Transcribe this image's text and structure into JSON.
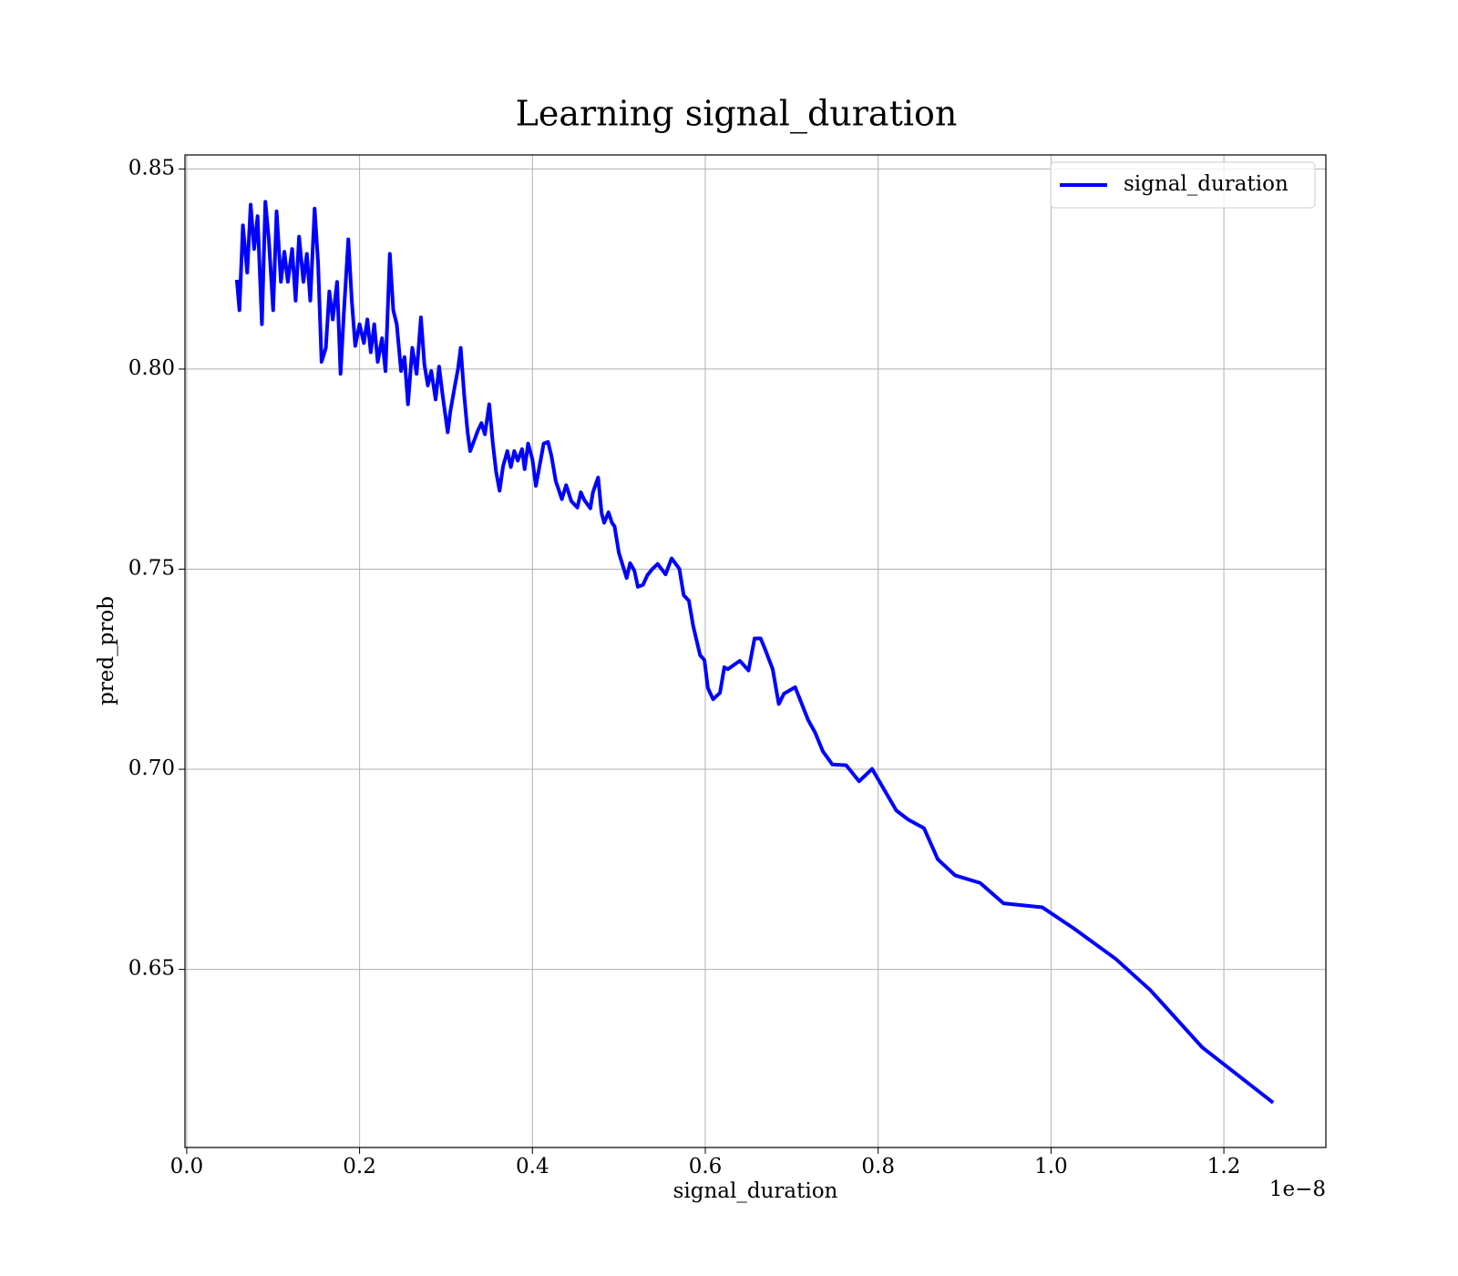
{
  "chart_data": {
    "type": "line",
    "title": "Learning signal_duration",
    "xlabel": "signal_duration",
    "ylabel": "pred_prob",
    "x_offset_label": "1e−8",
    "xlim": [
      -0.002,
      1.318
    ],
    "ylim": [
      0.6055,
      0.8535
    ],
    "xticks": [
      {
        "value": 0,
        "label": "0.0"
      },
      0.2,
      0.4,
      0.6,
      0.8,
      {
        "value": 1,
        "label": "1.0"
      },
      1.2
    ],
    "yticks": [
      {
        "value": 0.65,
        "label": "0.65"
      },
      {
        "value": 0.7,
        "label": "0.70"
      },
      {
        "value": 0.75,
        "label": "0.75"
      },
      {
        "value": 0.8,
        "label": "0.80"
      },
      {
        "value": 0.85,
        "label": "0.85"
      }
    ],
    "grid": true,
    "legend": "upper right",
    "x": [
      0.058,
      0.061,
      0.065,
      0.07,
      0.074,
      0.078,
      0.082,
      0.087,
      0.091,
      0.095,
      0.1,
      0.104,
      0.109,
      0.113,
      0.117,
      0.122,
      0.126,
      0.13,
      0.135,
      0.139,
      0.143,
      0.148,
      0.152,
      0.156,
      0.161,
      0.165,
      0.169,
      0.174,
      0.178,
      0.182,
      0.187,
      0.191,
      0.195,
      0.2,
      0.205,
      0.209,
      0.213,
      0.217,
      0.221,
      0.226,
      0.23,
      0.235,
      0.239,
      0.243,
      0.248,
      0.252,
      0.256,
      0.261,
      0.266,
      0.271,
      0.275,
      0.279,
      0.283,
      0.288,
      0.292,
      0.296,
      0.302,
      0.305,
      0.31,
      0.314,
      0.317,
      0.321,
      0.325,
      0.328,
      0.332,
      0.337,
      0.341,
      0.345,
      0.35,
      0.354,
      0.358,
      0.362,
      0.366,
      0.371,
      0.375,
      0.379,
      0.383,
      0.388,
      0.391,
      0.395,
      0.4,
      0.404,
      0.408,
      0.413,
      0.418,
      0.422,
      0.427,
      0.43,
      0.434,
      0.439,
      0.445,
      0.452,
      0.456,
      0.46,
      0.467,
      0.47,
      0.476,
      0.48,
      0.483,
      0.488,
      0.492,
      0.495,
      0.5,
      0.505,
      0.509,
      0.513,
      0.518,
      0.522,
      0.528,
      0.533,
      0.539,
      0.545,
      0.554,
      0.561,
      0.57,
      0.575,
      0.581,
      0.586,
      0.594,
      0.599,
      0.603,
      0.609,
      0.617,
      0.622,
      0.626,
      0.64,
      0.65,
      0.657,
      0.664,
      0.669,
      0.678,
      0.685,
      0.691,
      0.704,
      0.719,
      0.727,
      0.736,
      0.747,
      0.763,
      0.778,
      0.793,
      0.821,
      0.835,
      0.853,
      0.869,
      0.889,
      0.918,
      0.945,
      0.99,
      1.026,
      1.075,
      1.115,
      1.175,
      1.257
    ],
    "series": [
      {
        "name": "signal_duration",
        "color": "#0000ff",
        "values": [
          0.8223,
          0.8147,
          0.8359,
          0.8241,
          0.8411,
          0.83,
          0.8382,
          0.8112,
          0.8418,
          0.8324,
          0.8147,
          0.8394,
          0.8218,
          0.8293,
          0.8218,
          0.83,
          0.8171,
          0.8331,
          0.8218,
          0.8288,
          0.8171,
          0.8401,
          0.8265,
          0.8018,
          0.8053,
          0.8194,
          0.8124,
          0.8218,
          0.7988,
          0.8147,
          0.8324,
          0.8171,
          0.8058,
          0.8112,
          0.8065,
          0.8124,
          0.8042,
          0.8112,
          0.8018,
          0.8077,
          0.7995,
          0.8288,
          0.8147,
          0.8112,
          0.7995,
          0.803,
          0.7912,
          0.8053,
          0.7988,
          0.8129,
          0.8011,
          0.7959,
          0.7995,
          0.7924,
          0.8006,
          0.7936,
          0.7842,
          0.7894,
          0.7955,
          0.8002,
          0.8053,
          0.7936,
          0.7842,
          0.7795,
          0.7818,
          0.7847,
          0.7865,
          0.7837,
          0.7912,
          0.7818,
          0.7743,
          0.7696,
          0.7757,
          0.7795,
          0.7755,
          0.7795,
          0.7771,
          0.78,
          0.775,
          0.7814,
          0.7774,
          0.7708,
          0.7755,
          0.7814,
          0.7818,
          0.7783,
          0.772,
          0.7701,
          0.7675,
          0.771,
          0.767,
          0.7654,
          0.7692,
          0.7673,
          0.7652,
          0.7692,
          0.7729,
          0.764,
          0.7616,
          0.7642,
          0.7616,
          0.7607,
          0.7541,
          0.7506,
          0.7478,
          0.7515,
          0.7496,
          0.7456,
          0.7461,
          0.7485,
          0.7501,
          0.7513,
          0.7487,
          0.7527,
          0.7501,
          0.7435,
          0.7421,
          0.7358,
          0.7285,
          0.7273,
          0.7203,
          0.7175,
          0.7191,
          0.7255,
          0.725,
          0.7271,
          0.7247,
          0.7327,
          0.7327,
          0.7301,
          0.725,
          0.7163,
          0.7189,
          0.7205,
          0.7123,
          0.7092,
          0.7045,
          0.7012,
          0.701,
          0.697,
          0.7001,
          0.6897,
          0.6874,
          0.6853,
          0.6775,
          0.6735,
          0.6716,
          0.6665,
          0.6655,
          0.6603,
          0.6526,
          0.6448,
          0.6305,
          0.6167
        ]
      }
    ]
  }
}
